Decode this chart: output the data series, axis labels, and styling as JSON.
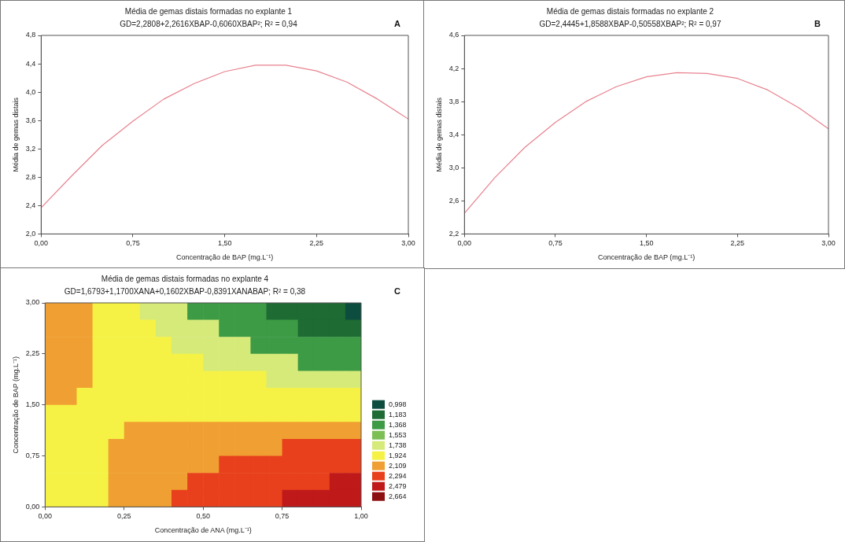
{
  "chart_data": [
    {
      "type": "line",
      "title": "Média de gemas distais formadas no explante 1",
      "subtitle": "GD=2,2808+2,2616XBAP-0,6060XBAP²; R² = 0,94",
      "annotations": [
        "A"
      ],
      "xlabel": "Concentração de BAP (mg.L⁻¹)",
      "ylabel": "Média de gemas distais",
      "x": [
        0,
        0.25,
        0.5,
        0.75,
        1.0,
        1.25,
        1.5,
        1.75,
        2.0,
        2.25,
        2.5,
        2.75,
        3.0
      ],
      "series": [
        {
          "color": "#e8828f",
          "values": [
            2.37,
            2.82,
            3.25,
            3.59,
            3.9,
            4.12,
            4.29,
            4.38,
            4.38,
            4.3,
            4.14,
            3.9,
            3.62
          ]
        }
      ],
      "xlim": [
        0,
        3
      ],
      "xticks": [
        {
          "value": 0,
          "label": "0,00"
        },
        {
          "value": 0.75,
          "label": "0,75"
        },
        {
          "value": 1.5,
          "label": "1,50"
        },
        {
          "value": 2.25,
          "label": "2,25"
        },
        {
          "value": 3,
          "label": "3,00"
        }
      ],
      "ylim": [
        2.0,
        4.8
      ],
      "yticks": [
        {
          "value": 2.0,
          "label": "2,0"
        },
        {
          "value": 2.4,
          "label": "2,4"
        },
        {
          "value": 2.8,
          "label": "2,8"
        },
        {
          "value": 3.2,
          "label": "3,2"
        },
        {
          "value": 3.6,
          "label": "3,6"
        },
        {
          "value": 4.0,
          "label": "4,0"
        },
        {
          "value": 4.4,
          "label": "4,4"
        },
        {
          "value": 4.8,
          "label": "4,8"
        }
      ]
    },
    {
      "type": "line",
      "title": "Média de gemas distais formadas no explante 2",
      "subtitle": "GD=2,4445+1,8588XBAP-0,50558XBAP²; R² = 0,97",
      "annotations": [
        "B"
      ],
      "xlabel": "Concentração de BAP (mg.L⁻¹)",
      "ylabel": "Média de gemas distais",
      "x": [
        0,
        0.25,
        0.5,
        0.75,
        1.0,
        1.25,
        1.5,
        1.75,
        2.0,
        2.25,
        2.5,
        2.75,
        3.0
      ],
      "series": [
        {
          "color": "#e8828f",
          "values": [
            2.45,
            2.88,
            3.25,
            3.55,
            3.8,
            3.98,
            4.1,
            4.15,
            4.14,
            4.08,
            3.94,
            3.73,
            3.47
          ]
        }
      ],
      "xlim": [
        0,
        3
      ],
      "xticks": [
        {
          "value": 0,
          "label": "0,00"
        },
        {
          "value": 0.75,
          "label": "0,75"
        },
        {
          "value": 1.5,
          "label": "1,50"
        },
        {
          "value": 2.25,
          "label": "2,25"
        },
        {
          "value": 3,
          "label": "3,00"
        }
      ],
      "ylim": [
        2.2,
        4.6
      ],
      "yticks": [
        {
          "value": 2.2,
          "label": "2,2"
        },
        {
          "value": 2.6,
          "label": "2,6"
        },
        {
          "value": 3.0,
          "label": "3,0"
        },
        {
          "value": 3.4,
          "label": "3,4"
        },
        {
          "value": 3.8,
          "label": "3,8"
        },
        {
          "value": 4.2,
          "label": "4,2"
        },
        {
          "value": 4.6,
          "label": "4,6"
        }
      ]
    },
    {
      "type": "heatmap",
      "title": "Média de gemas distais formadas no explante 4",
      "subtitle": "GD=1,6793+1,1700XANA+0,1602XBAP-0,8391XANABAP; R² = 0,38",
      "annotations": [
        "C"
      ],
      "xlabel": "Concentração de ANA (mg.L⁻¹)",
      "ylabel": "Concentração de BAP (mg.L⁻¹)",
      "x": [
        0.025,
        0.075,
        0.125,
        0.175,
        0.225,
        0.275,
        0.325,
        0.375,
        0.425,
        0.475,
        0.525,
        0.575,
        0.625,
        0.675,
        0.725,
        0.775,
        0.825,
        0.875,
        0.925,
        0.975
      ],
      "y": [
        2.875,
        2.625,
        2.375,
        2.125,
        1.875,
        1.625,
        1.375,
        1.125,
        0.875,
        0.625,
        0.375,
        0.125
      ],
      "cells": [
        [
          2.109,
          2.109,
          2.109,
          1.924,
          1.924,
          1.924,
          1.738,
          1.738,
          1.738,
          1.368,
          1.368,
          1.368,
          1.368,
          1.368,
          1.183,
          1.183,
          1.183,
          1.183,
          1.183,
          0.998
        ],
        [
          2.109,
          2.109,
          2.109,
          1.924,
          1.924,
          1.924,
          1.924,
          1.738,
          1.738,
          1.738,
          1.738,
          1.368,
          1.368,
          1.368,
          1.368,
          1.368,
          1.183,
          1.183,
          1.183,
          1.183
        ],
        [
          2.109,
          2.109,
          2.109,
          1.924,
          1.924,
          1.924,
          1.924,
          1.924,
          1.738,
          1.738,
          1.738,
          1.738,
          1.738,
          1.368,
          1.368,
          1.368,
          1.368,
          1.368,
          1.368,
          1.368
        ],
        [
          2.109,
          2.109,
          2.109,
          1.924,
          1.924,
          1.924,
          1.924,
          1.924,
          1.924,
          1.924,
          1.738,
          1.738,
          1.738,
          1.738,
          1.738,
          1.738,
          1.368,
          1.368,
          1.368,
          1.368
        ],
        [
          2.109,
          2.109,
          2.109,
          1.924,
          1.924,
          1.924,
          1.924,
          1.924,
          1.924,
          1.924,
          1.924,
          1.924,
          1.924,
          1.924,
          1.738,
          1.738,
          1.738,
          1.738,
          1.738,
          1.738
        ],
        [
          2.109,
          2.109,
          1.924,
          1.924,
          1.924,
          1.924,
          1.924,
          1.924,
          1.924,
          1.924,
          1.924,
          1.924,
          1.924,
          1.924,
          1.924,
          1.924,
          1.924,
          1.924,
          1.924,
          1.924
        ],
        [
          1.924,
          1.924,
          1.924,
          1.924,
          1.924,
          1.924,
          1.924,
          1.924,
          1.924,
          1.924,
          1.924,
          1.924,
          1.924,
          1.924,
          1.924,
          1.924,
          1.924,
          1.924,
          1.924,
          1.924
        ],
        [
          1.924,
          1.924,
          1.924,
          1.924,
          1.924,
          2.109,
          2.109,
          2.109,
          2.109,
          2.109,
          2.109,
          2.109,
          2.109,
          2.109,
          2.109,
          2.109,
          2.109,
          2.109,
          2.109,
          2.109
        ],
        [
          1.924,
          1.924,
          1.924,
          1.924,
          2.109,
          2.109,
          2.109,
          2.109,
          2.109,
          2.109,
          2.109,
          2.109,
          2.109,
          2.109,
          2.109,
          2.294,
          2.294,
          2.294,
          2.294,
          2.294
        ],
        [
          1.924,
          1.924,
          1.924,
          1.924,
          2.109,
          2.109,
          2.109,
          2.109,
          2.109,
          2.109,
          2.109,
          2.294,
          2.294,
          2.294,
          2.294,
          2.294,
          2.294,
          2.294,
          2.294,
          2.294
        ],
        [
          1.924,
          1.924,
          1.924,
          1.924,
          2.109,
          2.109,
          2.109,
          2.109,
          2.109,
          2.294,
          2.294,
          2.294,
          2.294,
          2.294,
          2.294,
          2.294,
          2.294,
          2.294,
          2.479,
          2.479
        ],
        [
          1.924,
          1.924,
          1.924,
          1.924,
          2.109,
          2.109,
          2.109,
          2.109,
          2.294,
          2.294,
          2.294,
          2.294,
          2.294,
          2.294,
          2.294,
          2.479,
          2.479,
          2.479,
          2.479,
          2.479
        ]
      ],
      "colors": [
        "#0d4d3f",
        "#1e6b34",
        "#3d9b45",
        "#7cbf55",
        "#d6ea7a",
        "#f5f245",
        "#f0a032",
        "#e8401c",
        "#c0191a",
        "#8c0f12"
      ],
      "cticks": [
        {
          "value": 0.998,
          "label": "0,998"
        },
        {
          "value": 1.183,
          "label": "1,183"
        },
        {
          "value": 1.368,
          "label": "1,368"
        },
        {
          "value": 1.553,
          "label": "1,553"
        },
        {
          "value": 1.738,
          "label": "1,738"
        },
        {
          "value": 1.924,
          "label": "1,924"
        },
        {
          "value": 2.109,
          "label": "2,109"
        },
        {
          "value": 2.294,
          "label": "2,294"
        },
        {
          "value": 2.479,
          "label": "2,479"
        },
        {
          "value": 2.664,
          "label": "2,664"
        }
      ],
      "xlim": [
        0,
        1
      ],
      "xticks": [
        {
          "value": 0,
          "label": "0,00"
        },
        {
          "value": 0.25,
          "label": "0,25"
        },
        {
          "value": 0.5,
          "label": "0,50"
        },
        {
          "value": 0.75,
          "label": "0,75"
        },
        {
          "value": 1,
          "label": "1,00"
        }
      ],
      "ylim": [
        0,
        3
      ],
      "yticks": [
        {
          "value": 0,
          "label": "0,00"
        },
        {
          "value": 0.75,
          "label": "0,75"
        },
        {
          "value": 1.5,
          "label": "1,50"
        },
        {
          "value": 2.25,
          "label": "2,25"
        },
        {
          "value": 3,
          "label": "3,00"
        }
      ]
    }
  ]
}
